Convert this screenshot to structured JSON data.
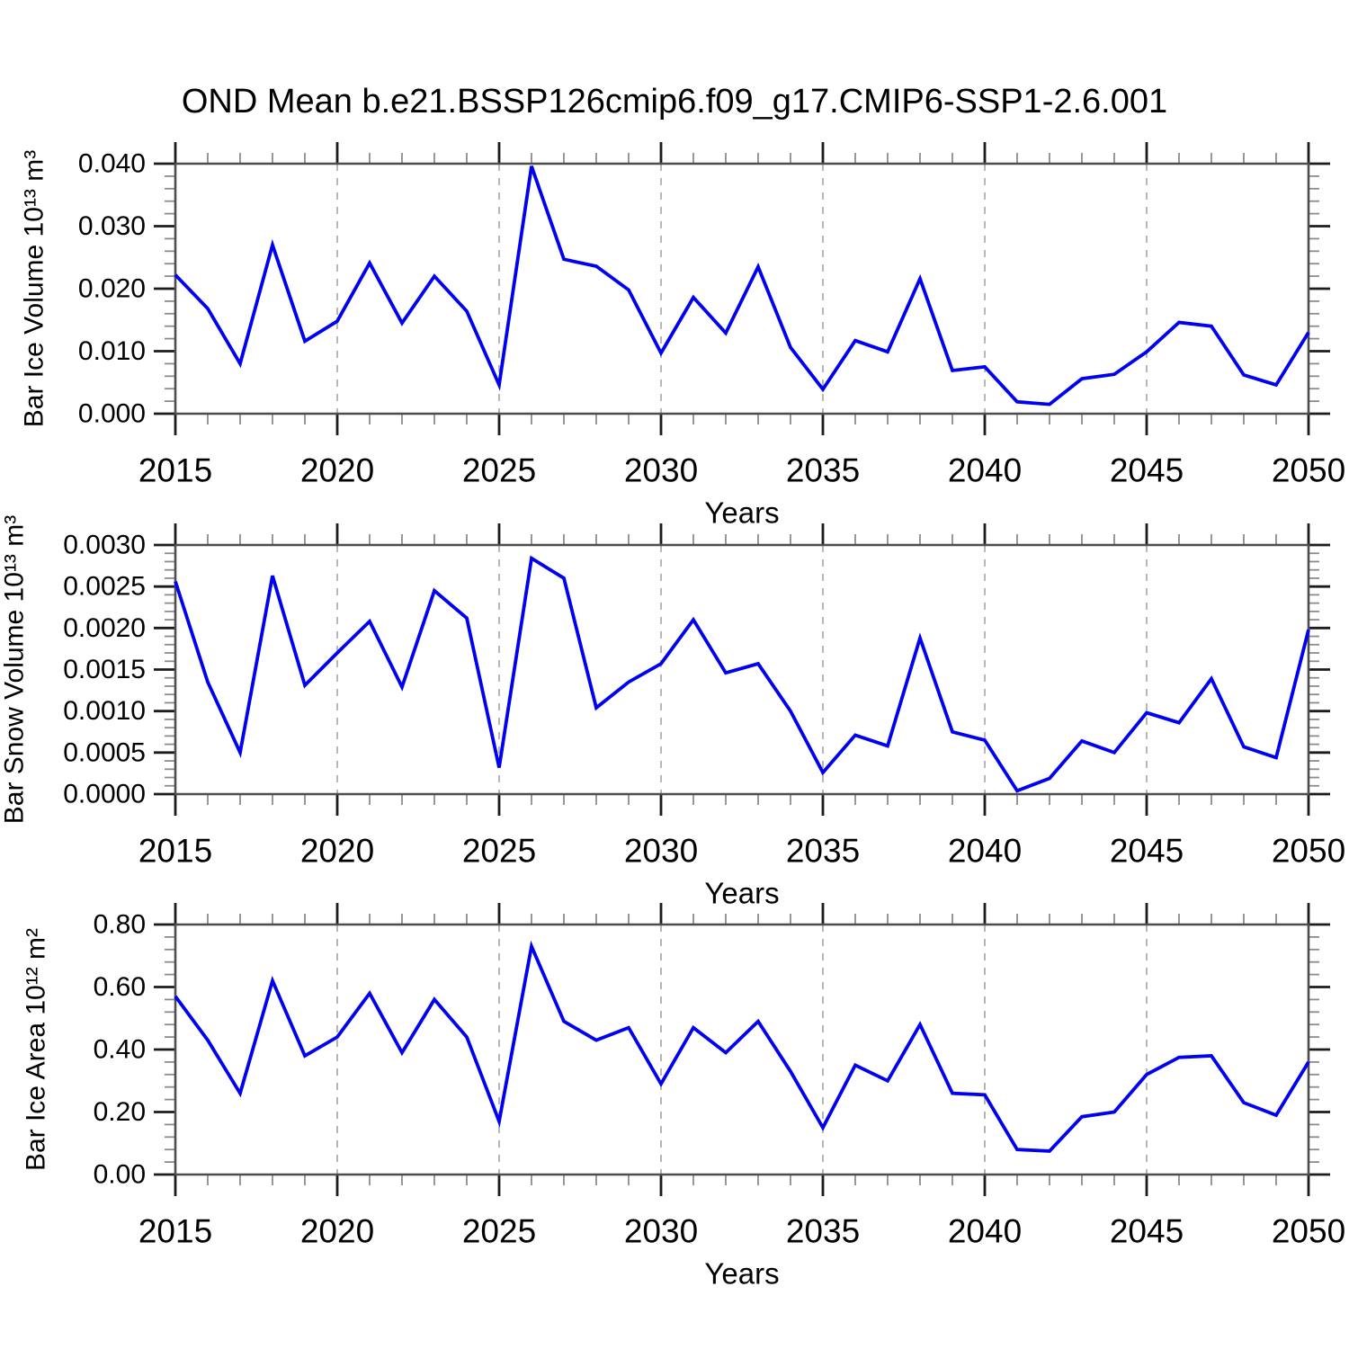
{
  "title": "OND Mean b.e21.BSSP126cmip6.f09_g17.CMIP6-SSP1-2.6.001",
  "chart_data": [
    {
      "type": "line",
      "name": "bar-ice-volume",
      "xlabel": "Years",
      "ylabel": "Bar Ice Volume 10¹³ m³",
      "line_color": "#0000f2",
      "xlim": [
        2015,
        2050
      ],
      "ylim": [
        0.0,
        0.04
      ],
      "xticks": [
        2015,
        2020,
        2025,
        2030,
        2035,
        2040,
        2045,
        2050
      ],
      "xtick_labels": [
        "2015",
        "2020",
        "2025",
        "2030",
        "2035",
        "2040",
        "2045",
        "2050"
      ],
      "minor_x_step": 1,
      "yticks": [
        0.0,
        0.01,
        0.02,
        0.03,
        0.04
      ],
      "ytick_labels": [
        "0.000",
        "0.010",
        "0.020",
        "0.030",
        "0.040"
      ],
      "minor_y_step": 0.002,
      "gridlines_x": [
        2020,
        2025,
        2030,
        2035,
        2040,
        2045
      ],
      "grid_on": true,
      "legend": "none",
      "x": [
        2015,
        2016,
        2017,
        2018,
        2019,
        2020,
        2021,
        2022,
        2023,
        2024,
        2025,
        2026,
        2027,
        2028,
        2029,
        2030,
        2031,
        2032,
        2033,
        2034,
        2035,
        2036,
        2037,
        2038,
        2039,
        2040,
        2041,
        2042,
        2043,
        2044,
        2045,
        2046,
        2047,
        2048,
        2049,
        2050
      ],
      "values": [
        0.0222,
        0.0168,
        0.008,
        0.027,
        0.0116,
        0.0148,
        0.0241,
        0.0145,
        0.022,
        0.0164,
        0.0046,
        0.0396,
        0.0247,
        0.0236,
        0.0198,
        0.0097,
        0.0186,
        0.0129,
        0.0235,
        0.0106,
        0.0039,
        0.0117,
        0.0099,
        0.0216,
        0.0069,
        0.0075,
        0.0019,
        0.0015,
        0.0056,
        0.0063,
        0.0099,
        0.0146,
        0.014,
        0.0062,
        0.0046,
        0.013
      ]
    },
    {
      "type": "line",
      "name": "bar-snow-volume",
      "xlabel": "Years",
      "ylabel": "Bar Snow Volume 10¹³ m³",
      "line_color": "#0000f2",
      "xlim": [
        2015,
        2050
      ],
      "ylim": [
        0.0,
        0.003
      ],
      "xticks": [
        2015,
        2020,
        2025,
        2030,
        2035,
        2040,
        2045,
        2050
      ],
      "xtick_labels": [
        "2015",
        "2020",
        "2025",
        "2030",
        "2035",
        "2040",
        "2045",
        "2050"
      ],
      "minor_x_step": 1,
      "yticks": [
        0.0,
        0.0005,
        0.001,
        0.0015,
        0.002,
        0.0025,
        0.003
      ],
      "ytick_labels": [
        "0.0000",
        "0.0005",
        "0.0010",
        "0.0015",
        "0.0020",
        "0.0025",
        "0.0030"
      ],
      "minor_y_step": 0.0001,
      "gridlines_x": [
        2020,
        2025,
        2030,
        2035,
        2040,
        2045
      ],
      "grid_on": true,
      "legend": "none",
      "x": [
        2015,
        2016,
        2017,
        2018,
        2019,
        2020,
        2021,
        2022,
        2023,
        2024,
        2025,
        2026,
        2027,
        2028,
        2029,
        2030,
        2031,
        2032,
        2033,
        2034,
        2035,
        2036,
        2037,
        2038,
        2039,
        2040,
        2041,
        2042,
        2043,
        2044,
        2045,
        2046,
        2047,
        2048,
        2049,
        2050
      ],
      "values": [
        0.00256,
        0.00135,
        0.0005,
        0.00263,
        0.00131,
        0.0017,
        0.00208,
        0.00129,
        0.00245,
        0.00212,
        0.00032,
        0.00284,
        0.0026,
        0.00104,
        0.00135,
        0.00157,
        0.0021,
        0.00146,
        0.00157,
        0.001,
        0.00026,
        0.00071,
        0.00058,
        0.00188,
        0.00075,
        0.00065,
        4e-05,
        0.00019,
        0.00064,
        0.0005,
        0.00098,
        0.00086,
        0.00139,
        0.00057,
        0.00044,
        0.00198
      ]
    },
    {
      "type": "line",
      "name": "bar-ice-area",
      "xlabel": "Years",
      "ylabel": "Bar Ice Area 10¹² m²",
      "line_color": "#0000f2",
      "xlim": [
        2015,
        2050
      ],
      "ylim": [
        0.0,
        0.8
      ],
      "xticks": [
        2015,
        2020,
        2025,
        2030,
        2035,
        2040,
        2045,
        2050
      ],
      "xtick_labels": [
        "2015",
        "2020",
        "2025",
        "2030",
        "2035",
        "2040",
        "2045",
        "2050"
      ],
      "minor_x_step": 1,
      "yticks": [
        0.0,
        0.2,
        0.4,
        0.6,
        0.8
      ],
      "ytick_labels": [
        "0.00",
        "0.20",
        "0.40",
        "0.60",
        "0.80"
      ],
      "minor_y_step": 0.04,
      "gridlines_x": [
        2020,
        2025,
        2030,
        2035,
        2040,
        2045
      ],
      "grid_on": true,
      "legend": "none",
      "x": [
        2015,
        2016,
        2017,
        2018,
        2019,
        2020,
        2021,
        2022,
        2023,
        2024,
        2025,
        2026,
        2027,
        2028,
        2029,
        2030,
        2031,
        2032,
        2033,
        2034,
        2035,
        2036,
        2037,
        2038,
        2039,
        2040,
        2041,
        2042,
        2043,
        2044,
        2045,
        2046,
        2047,
        2048,
        2049,
        2050
      ],
      "values": [
        0.57,
        0.43,
        0.26,
        0.62,
        0.38,
        0.44,
        0.58,
        0.39,
        0.56,
        0.44,
        0.17,
        0.73,
        0.49,
        0.43,
        0.47,
        0.29,
        0.47,
        0.39,
        0.49,
        0.33,
        0.15,
        0.35,
        0.3,
        0.48,
        0.26,
        0.255,
        0.08,
        0.075,
        0.185,
        0.2,
        0.32,
        0.375,
        0.38,
        0.23,
        0.19,
        0.36
      ]
    }
  ]
}
